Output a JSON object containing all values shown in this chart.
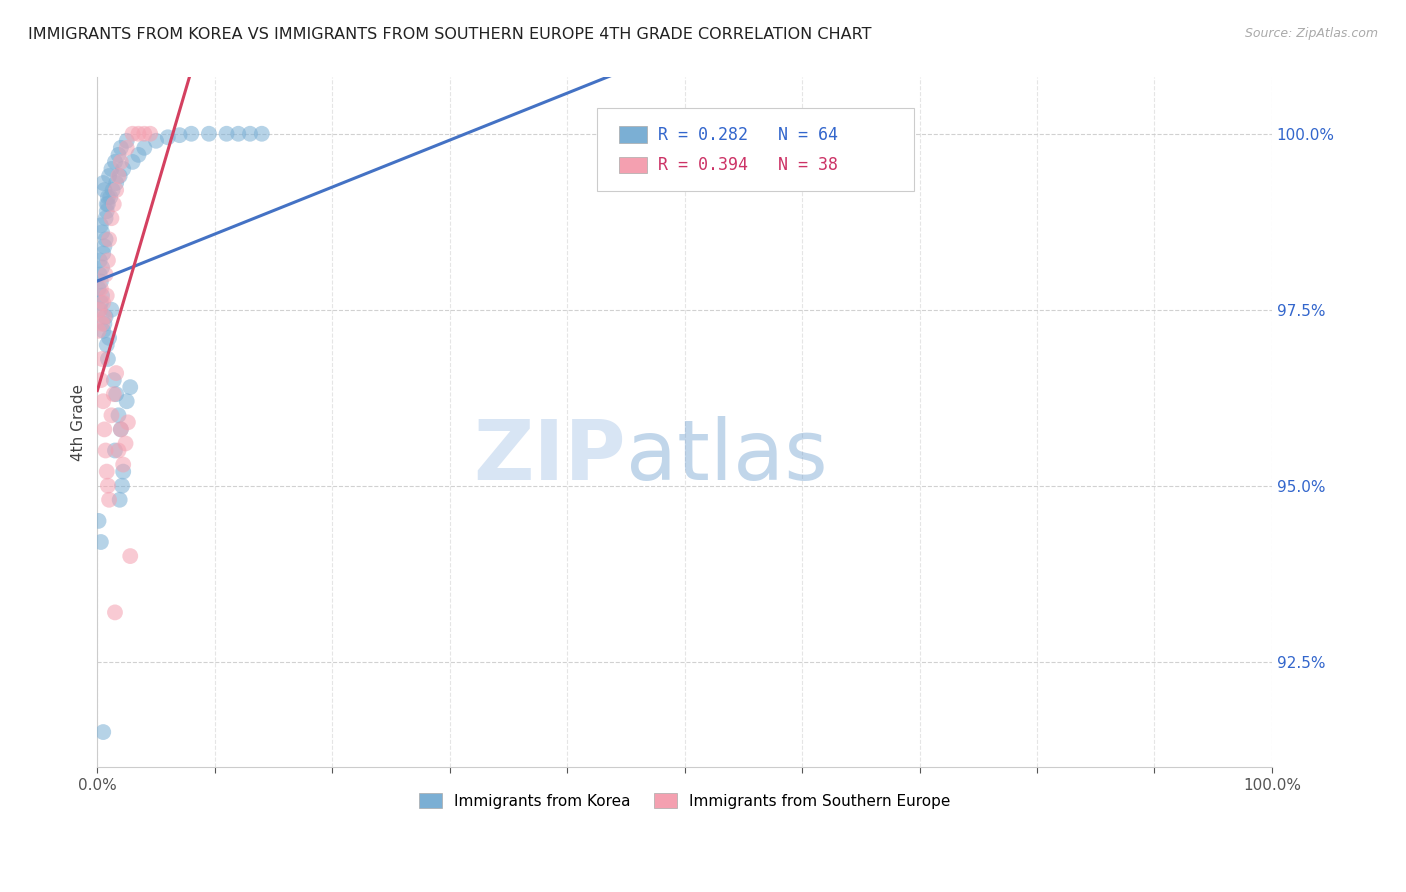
{
  "title": "IMMIGRANTS FROM KOREA VS IMMIGRANTS FROM SOUTHERN EUROPE 4TH GRADE CORRELATION CHART",
  "source": "Source: ZipAtlas.com",
  "ylabel": "4th Grade",
  "legend_blue_r": "R = 0.282",
  "legend_blue_n": "N = 64",
  "legend_pink_r": "R = 0.394",
  "legend_pink_n": "N = 38",
  "legend_label_blue": "Immigrants from Korea",
  "legend_label_pink": "Immigrants from Southern Europe",
  "blue_color": "#7bafd4",
  "pink_color": "#f4a0b0",
  "blue_line_color": "#4472c4",
  "pink_line_color": "#d44060",
  "background_color": "#ffffff",
  "watermark_zip": "ZIP",
  "watermark_atlas": "atlas",
  "korea_x": [
    0.001,
    0.002,
    0.003,
    0.004,
    0.002,
    0.005,
    0.006,
    0.007,
    0.004,
    0.003,
    0.008,
    0.009,
    0.006,
    0.005,
    0.01,
    0.012,
    0.015,
    0.018,
    0.02,
    0.025,
    0.007,
    0.008,
    0.009,
    0.011,
    0.013,
    0.016,
    0.019,
    0.022,
    0.03,
    0.035,
    0.04,
    0.05,
    0.06,
    0.07,
    0.08,
    0.095,
    0.11,
    0.12,
    0.13,
    0.14,
    0.002,
    0.003,
    0.004,
    0.005,
    0.006,
    0.007,
    0.008,
    0.009,
    0.01,
    0.012,
    0.014,
    0.016,
    0.018,
    0.02,
    0.025,
    0.028,
    0.015,
    0.022,
    0.6,
    0.001,
    0.003,
    0.005,
    0.021,
    0.019
  ],
  "korea_y": [
    97.8,
    98.0,
    97.9,
    98.1,
    98.2,
    98.3,
    98.4,
    98.5,
    98.6,
    98.7,
    99.0,
    99.1,
    99.2,
    99.3,
    99.4,
    99.5,
    99.6,
    99.7,
    99.8,
    99.9,
    98.8,
    98.9,
    99.0,
    99.1,
    99.2,
    99.3,
    99.4,
    99.5,
    99.6,
    99.7,
    99.8,
    99.9,
    99.95,
    99.98,
    100.0,
    100.0,
    100.0,
    100.0,
    100.0,
    100.0,
    97.5,
    97.6,
    97.7,
    97.2,
    97.3,
    97.4,
    97.0,
    96.8,
    97.1,
    97.5,
    96.5,
    96.3,
    96.0,
    95.8,
    96.2,
    96.4,
    95.5,
    95.2,
    100.0,
    94.5,
    94.2,
    91.5,
    95.0,
    94.8
  ],
  "seur_x": [
    0.001,
    0.002,
    0.003,
    0.004,
    0.005,
    0.006,
    0.007,
    0.008,
    0.009,
    0.01,
    0.012,
    0.014,
    0.016,
    0.018,
    0.02,
    0.025,
    0.03,
    0.035,
    0.04,
    0.045,
    0.003,
    0.004,
    0.005,
    0.006,
    0.007,
    0.008,
    0.009,
    0.01,
    0.012,
    0.014,
    0.016,
    0.018,
    0.02,
    0.022,
    0.024,
    0.026,
    0.015,
    0.028
  ],
  "seur_y": [
    97.2,
    97.5,
    97.8,
    97.3,
    97.6,
    97.4,
    98.0,
    97.7,
    98.2,
    98.5,
    98.8,
    99.0,
    99.2,
    99.4,
    99.6,
    99.8,
    100.0,
    100.0,
    100.0,
    100.0,
    96.5,
    96.8,
    96.2,
    95.8,
    95.5,
    95.2,
    95.0,
    94.8,
    96.0,
    96.3,
    96.6,
    95.5,
    95.8,
    95.3,
    95.6,
    95.9,
    93.2,
    94.0
  ],
  "xlim": [
    0.0,
    1.0
  ],
  "ylim": [
    91.0,
    100.8
  ]
}
